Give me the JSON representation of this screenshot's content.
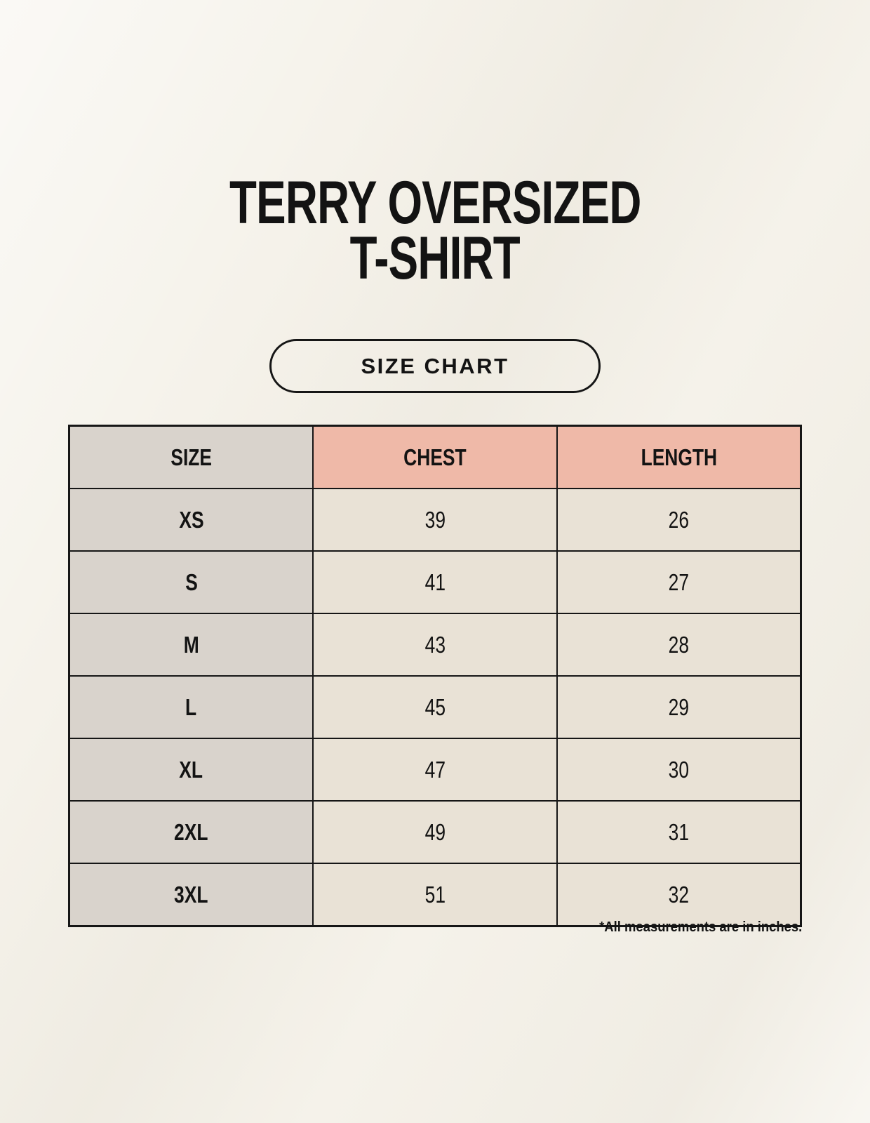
{
  "header": {
    "title_line1": "TERRY OVERSIZED",
    "title_line2": "T-SHIRT",
    "title_full": "TERRY OVERSIZED T-SHIRT"
  },
  "size_chart_button": {
    "label": "SIZE CHART"
  },
  "chart_data": {
    "type": "table",
    "title": "TERRY OVERSIZED T-SHIRT",
    "subtitle": "SIZE CHART",
    "columns": [
      "SIZE",
      "CHEST",
      "LENGTH"
    ],
    "rows": [
      {
        "size": "XS",
        "chest": "39",
        "length": "26"
      },
      {
        "size": "S",
        "chest": "41",
        "length": "27"
      },
      {
        "size": "M",
        "chest": "43",
        "length": "28"
      },
      {
        "size": "L",
        "chest": "45",
        "length": "29"
      },
      {
        "size": "XL",
        "chest": "47",
        "length": "30"
      },
      {
        "size": "2XL",
        "chest": "49",
        "length": "31"
      },
      {
        "size": "3XL",
        "chest": "51",
        "length": "32"
      }
    ],
    "units": "inches"
  },
  "footnote": "*All measurements are in inches.",
  "colors": {
    "background": "#f5f2ea",
    "table_header_pink": "#efb9a8",
    "size_column_gray": "#d9d3cc",
    "cell_cream": "#e9e2d6",
    "border_black": "#161616",
    "text_black": "#131313"
  }
}
